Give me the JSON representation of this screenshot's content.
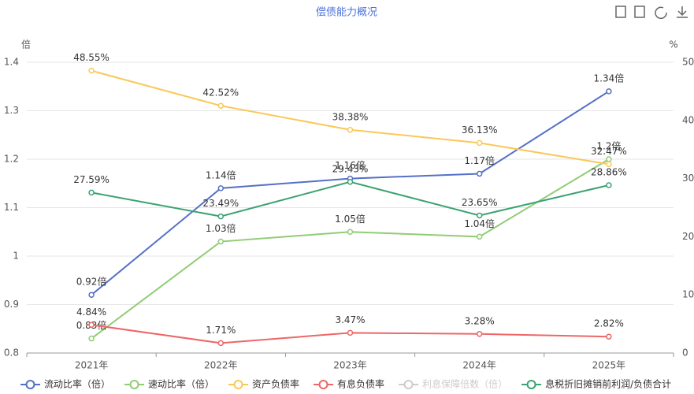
{
  "chart_data": {
    "type": "line",
    "title": "偿债能力概况",
    "ylabel": "倍",
    "y2label": "%",
    "categories": [
      "2021年",
      "2022年",
      "2023年",
      "2024年",
      "2025年"
    ],
    "ylim": [
      0.8,
      1.4
    ],
    "yticks": [
      0.8,
      0.9,
      1,
      1.1,
      1.2,
      1.3,
      1.4
    ],
    "y2lim": [
      0,
      50
    ],
    "y2ticks": [
      0,
      10,
      20,
      30,
      40,
      50
    ],
    "grid": true,
    "legend": "bottom",
    "series": [
      {
        "name": "流动比率（倍）",
        "color": "#5470c6",
        "values": [
          0.92,
          1.14,
          1.16,
          1.17,
          1.34
        ],
        "value_labels": [
          "0.92倍",
          "1.14倍",
          "1.16倍",
          "1.17倍",
          "1.34倍"
        ]
      },
      {
        "name": "速动比率（倍）",
        "color": "#91cc75",
        "values": [
          0.83,
          1.03,
          1.05,
          1.04,
          1.2
        ],
        "value_labels": [
          "0.83倍",
          "1.03倍",
          "1.05倍",
          "1.04倍",
          "1.2倍"
        ]
      },
      {
        "name": "资产负债率",
        "color": "#fac858",
        "axis": "y2",
        "values": [
          48.55,
          42.52,
          38.38,
          36.13,
          32.47
        ],
        "value_labels": [
          "48.55%",
          "42.52%",
          "38.38%",
          "36.13%",
          "32.47%"
        ]
      },
      {
        "name": "有息负债率",
        "color": "#ee6666",
        "axis": "y2",
        "values": [
          4.84,
          1.71,
          3.47,
          3.28,
          2.82
        ],
        "value_labels": [
          "4.84%",
          "1.71%",
          "3.47%",
          "3.28%",
          "2.82%"
        ]
      },
      {
        "name": "利息保障倍数（倍）",
        "color": "#cccccc",
        "values": [
          null,
          null,
          null,
          null,
          null
        ]
      },
      {
        "name": "息税折旧摊销前利润/负债合计",
        "color": "#3ba272",
        "axis": "y2",
        "values": [
          27.59,
          23.49,
          29.43,
          23.65,
          28.86
        ],
        "value_labels": [
          "27.59%",
          "23.49%",
          "29.43%",
          "23.65%",
          "28.86%"
        ]
      }
    ]
  }
}
